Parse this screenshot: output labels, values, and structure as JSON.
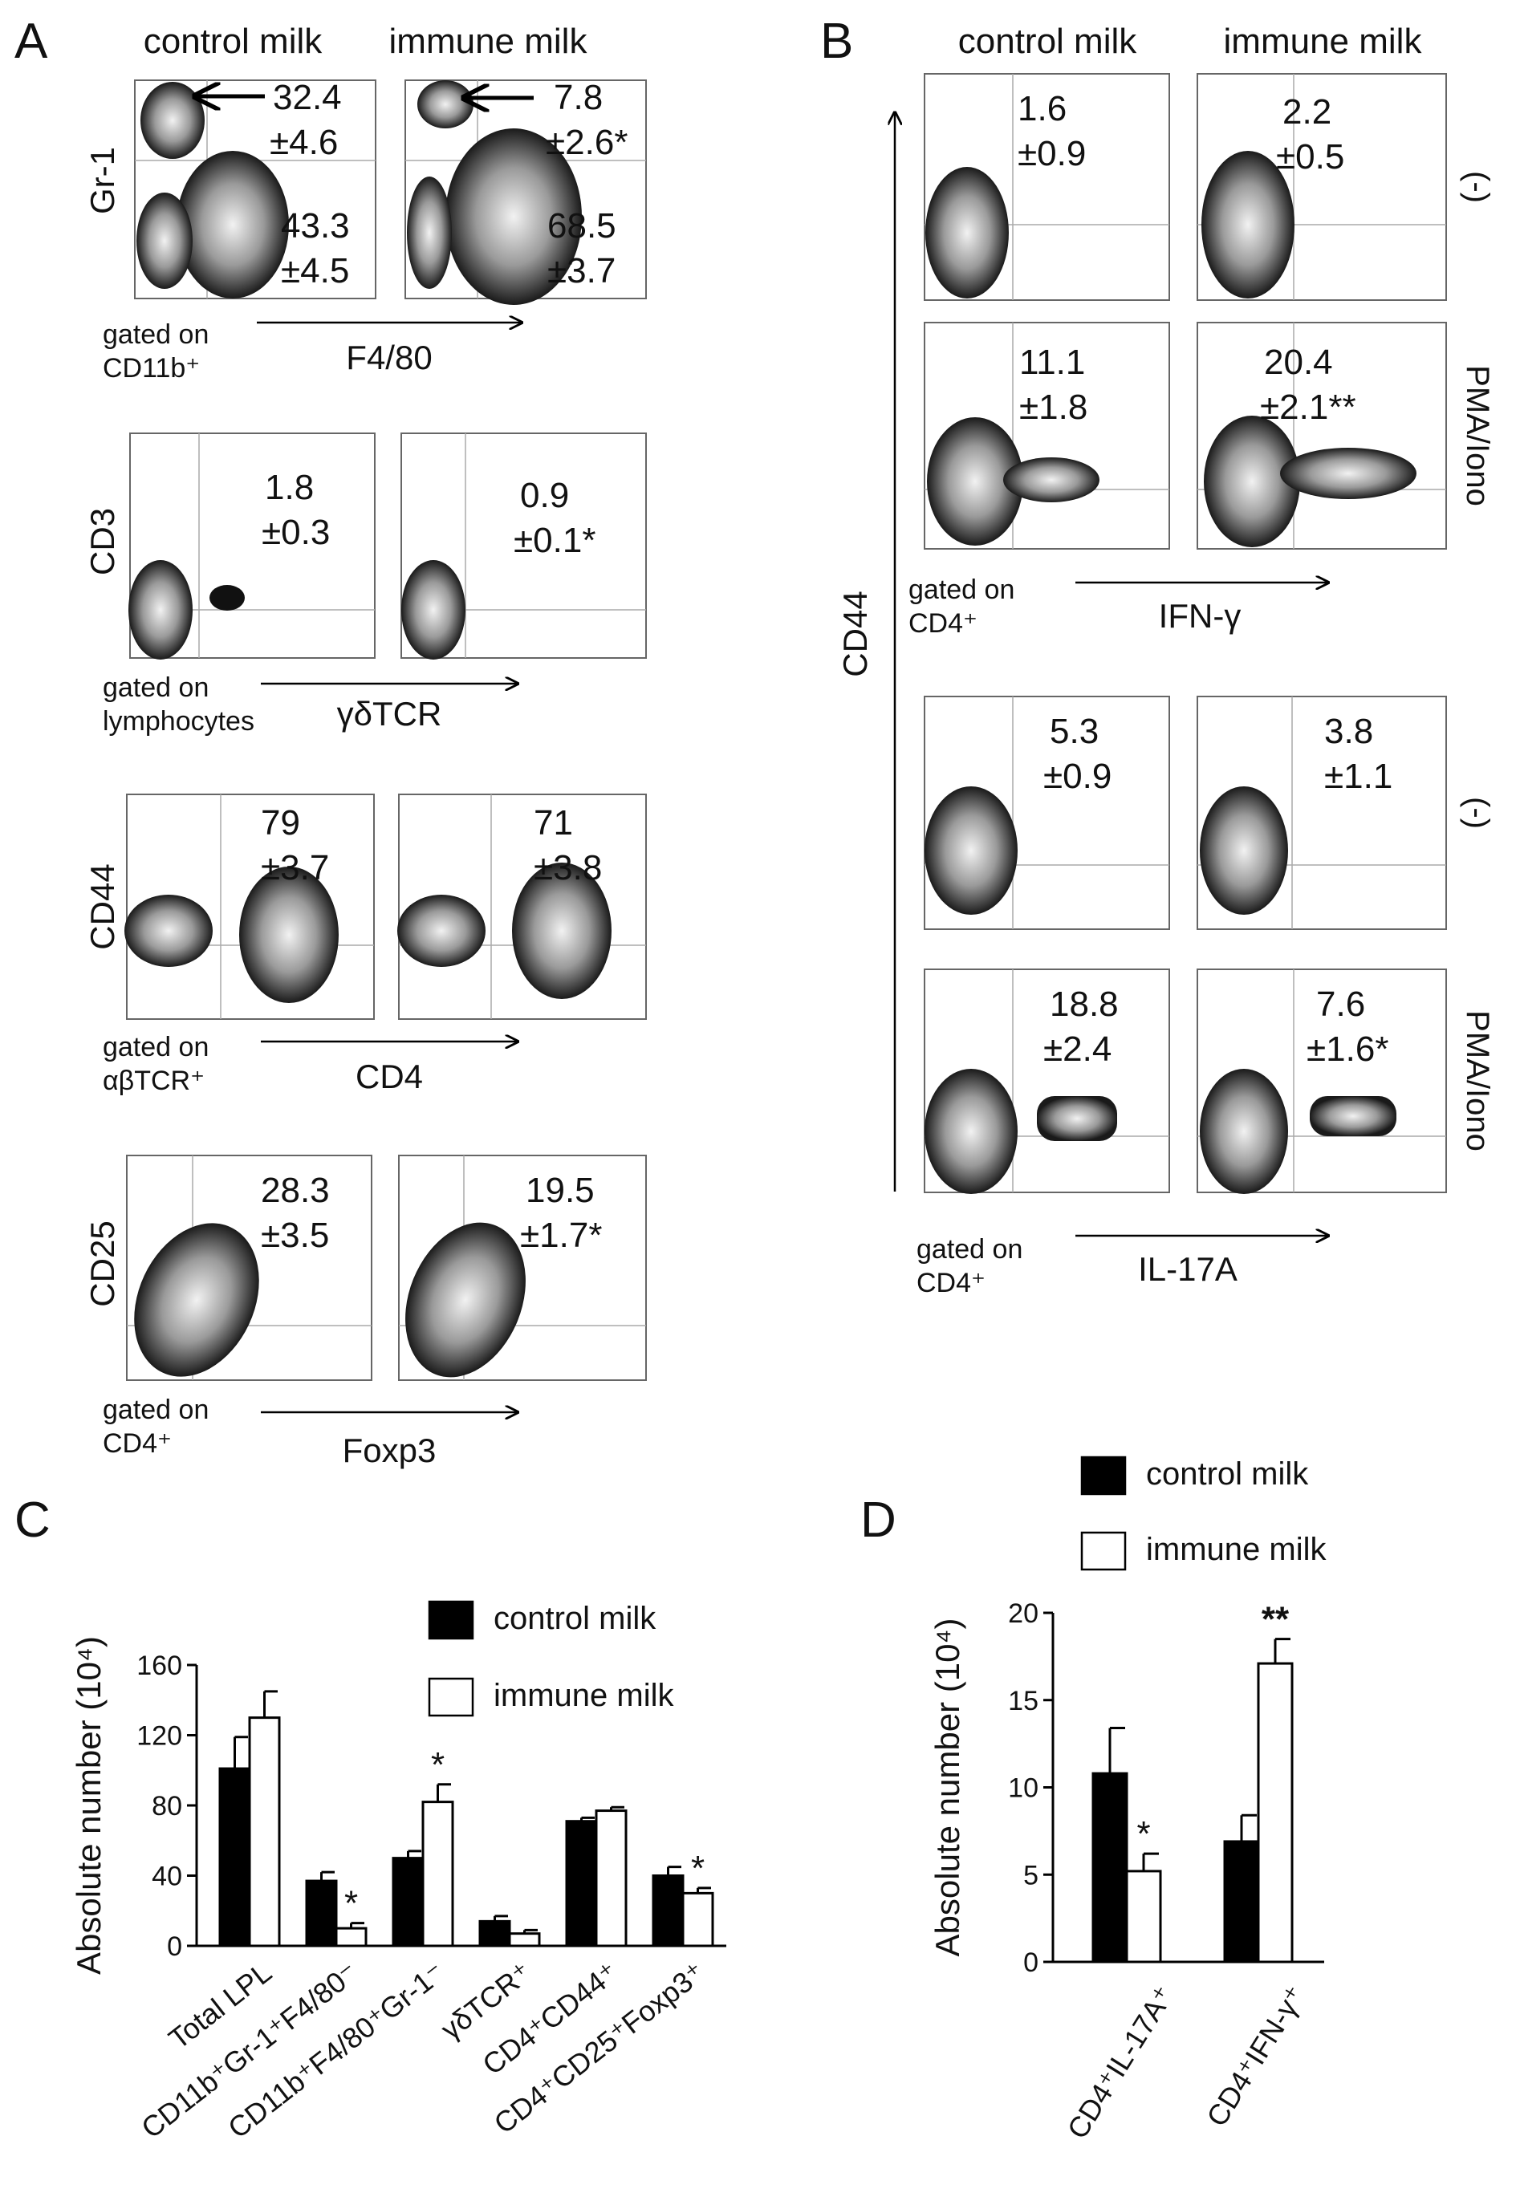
{
  "panel_labels": {
    "A": "A",
    "B": "B",
    "C": "C",
    "D": "D"
  },
  "panel_a": {
    "col_headers": [
      "control milk",
      "immune milk"
    ],
    "rows": [
      {
        "y_label": "Gr-1",
        "x_label": "F4/80",
        "gate": [
          "gated on",
          "CD11b⁺"
        ],
        "control": [
          {
            "v": "32.4",
            "e": "±4.6"
          },
          {
            "v": "43.3",
            "e": "±4.5"
          }
        ],
        "immune": [
          {
            "v": "7.8",
            "e": "±2.6*"
          },
          {
            "v": "68.5",
            "e": "±3.7"
          }
        ]
      },
      {
        "y_label": "CD3",
        "x_label": "γδTCR",
        "gate": [
          "gated on",
          "lymphocytes"
        ],
        "control": [
          {
            "v": "1.8",
            "e": "±0.3"
          }
        ],
        "immune": [
          {
            "v": "0.9",
            "e": "±0.1*"
          }
        ]
      },
      {
        "y_label": "CD44",
        "x_label": "CD4",
        "gate": [
          "gated on",
          "αβTCR⁺"
        ],
        "control": [
          {
            "v": "79",
            "e": "±3.7"
          }
        ],
        "immune": [
          {
            "v": "71",
            "e": "±3.8"
          }
        ]
      },
      {
        "y_label": "CD25",
        "x_label": "Foxp3",
        "gate": [
          "gated on",
          "CD4⁺"
        ],
        "control": [
          {
            "v": "28.3",
            "e": "±3.5"
          }
        ],
        "immune": [
          {
            "v": "19.5",
            "e": "±1.7*"
          }
        ]
      }
    ]
  },
  "panel_b": {
    "col_headers": [
      "control milk",
      "immune milk"
    ],
    "y_label": "CD44",
    "groups": [
      {
        "x_label": "IFN-γ",
        "gate": [
          "gated on",
          "CD4⁺"
        ],
        "rows": [
          {
            "condition": "(-)",
            "control": {
              "v": "1.6",
              "e": "±0.9"
            },
            "immune": {
              "v": "2.2",
              "e": "±0.5"
            }
          },
          {
            "condition": "PMA/Iono",
            "control": {
              "v": "11.1",
              "e": "±1.8"
            },
            "immune": {
              "v": "20.4",
              "e": "±2.1**"
            }
          }
        ]
      },
      {
        "x_label": "IL-17A",
        "gate": [
          "gated on",
          "CD4⁺"
        ],
        "rows": [
          {
            "condition": "(-)",
            "control": {
              "v": "5.3",
              "e": "±0.9"
            },
            "immune": {
              "v": "3.8",
              "e": "±1.1"
            }
          },
          {
            "condition": "PMA/Iono",
            "control": {
              "v": "18.8",
              "e": "±2.4"
            },
            "immune": {
              "v": "7.6",
              "e": "±1.6*"
            }
          }
        ]
      }
    ]
  },
  "chart_data": [
    {
      "panel": "C",
      "type": "bar",
      "ylabel": "Absolute number (10⁴)",
      "ylim": [
        0,
        160
      ],
      "yticks": [
        0,
        40,
        80,
        120,
        160
      ],
      "categories": [
        "Total LPL",
        "CD11b⁺Gr-1⁺F4/80⁻",
        "CD11b⁺F4/80⁺Gr-1⁻",
        "γδTCR⁺",
        "CD4⁺CD44⁺",
        "CD4⁺CD25⁺Foxp3⁺"
      ],
      "series": [
        {
          "name": "control milk",
          "color": "#000000",
          "values": [
            101,
            37,
            50,
            14,
            71,
            40
          ],
          "errors": [
            18,
            5,
            4,
            3,
            2,
            5
          ]
        },
        {
          "name": "immune milk",
          "color": "#ffffff",
          "values": [
            130,
            10,
            82,
            7,
            77,
            30
          ],
          "errors": [
            15,
            3,
            10,
            2,
            2,
            3
          ]
        }
      ],
      "significance": [
        "",
        "*",
        "*",
        "",
        "",
        "*"
      ],
      "legend": "top-right"
    },
    {
      "panel": "D",
      "type": "bar",
      "ylabel": "Absolute number (10⁴)",
      "ylim": [
        0,
        20
      ],
      "yticks": [
        0,
        5,
        10,
        15,
        20
      ],
      "categories": [
        "CD4⁺IL-17A⁺",
        "CD4⁺IFN-γ⁺"
      ],
      "series": [
        {
          "name": "control milk",
          "color": "#000000",
          "values": [
            10.8,
            6.9
          ],
          "errors": [
            2.6,
            1.5
          ]
        },
        {
          "name": "immune milk",
          "color": "#ffffff",
          "values": [
            5.2,
            17.1
          ],
          "errors": [
            1.0,
            1.4
          ]
        }
      ],
      "significance": [
        "*",
        "**"
      ],
      "legend": "top"
    }
  ]
}
